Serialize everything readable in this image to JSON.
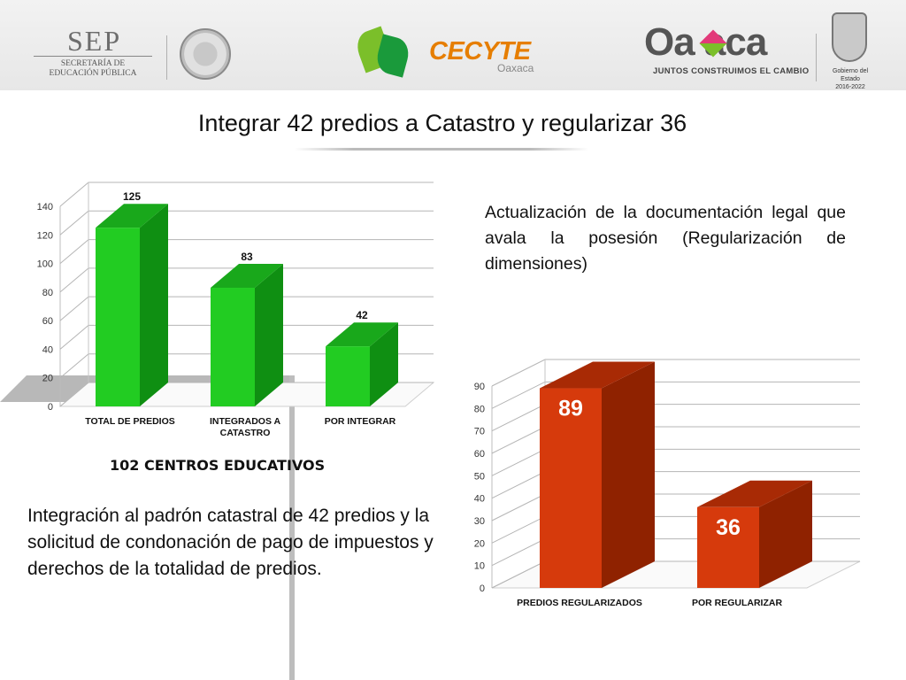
{
  "header": {
    "sep": {
      "word": "SEP",
      "subtitle_line1": "SECRETARÍA DE",
      "subtitle_line2": "EDUCACIÓN PÚBLICA"
    },
    "cecyte": {
      "word": "CECYTE",
      "sub": "Oaxaca"
    },
    "oaxaca": {
      "word": "Oa  aca",
      "slogan": "JUNTOS CONSTRUIMOS EL CAMBIO"
    },
    "gobierno": {
      "line1": "Gobierno del Estado",
      "line2": "2016-2022"
    }
  },
  "title": "Integrar  42 predios a Catastro y  regularizar 36",
  "subtitle_left": "102 CENTROS EDUCATIVOS",
  "paragraph_left": "Integración al padrón catastral  de 42 predios y la solicitud de condonación de pago de impuestos y derechos de la totalidad de predios.",
  "paragraph_right": "Actualización de la documentación legal que avala la posesión (Regularización de dimensiones)",
  "chart_data": [
    {
      "type": "bar",
      "categories": [
        "TOTAL DE PREDIOS",
        "INTEGRADOS A CATASTRO",
        "POR INTEGRAR"
      ],
      "category_lines": [
        [
          "TOTAL DE PREDIOS"
        ],
        [
          "INTEGRADOS A",
          "CATASTRO"
        ],
        [
          "POR INTEGRAR"
        ]
      ],
      "values": [
        125,
        83,
        42
      ],
      "data_labels": [
        "125",
        "83",
        "42"
      ],
      "ylim": [
        0,
        140
      ],
      "yticks": [
        0,
        20,
        40,
        60,
        80,
        100,
        120,
        140
      ],
      "grid": true,
      "style": "3d",
      "color": "#22cc22",
      "color_side": "#0f8f12",
      "color_top": "#19a81b",
      "label_color": "#111111",
      "title": "",
      "xlabel": "",
      "ylabel": ""
    },
    {
      "type": "bar",
      "categories": [
        "PREDIOS REGULARIZADOS",
        "POR REGULARIZAR"
      ],
      "category_lines": [
        [
          "PREDIOS REGULARIZADOS"
        ],
        [
          "POR REGULARIZAR"
        ]
      ],
      "values": [
        89,
        36
      ],
      "data_labels": [
        "89",
        "36"
      ],
      "ylim": [
        0,
        90
      ],
      "yticks": [
        0,
        10,
        20,
        30,
        40,
        50,
        60,
        70,
        80,
        90
      ],
      "grid": true,
      "style": "3d",
      "color": "#d63a0c",
      "color_side": "#8f2200",
      "color_top": "#a82a05",
      "label_color": "#ffffff",
      "title": "",
      "xlabel": "",
      "ylabel": ""
    }
  ]
}
